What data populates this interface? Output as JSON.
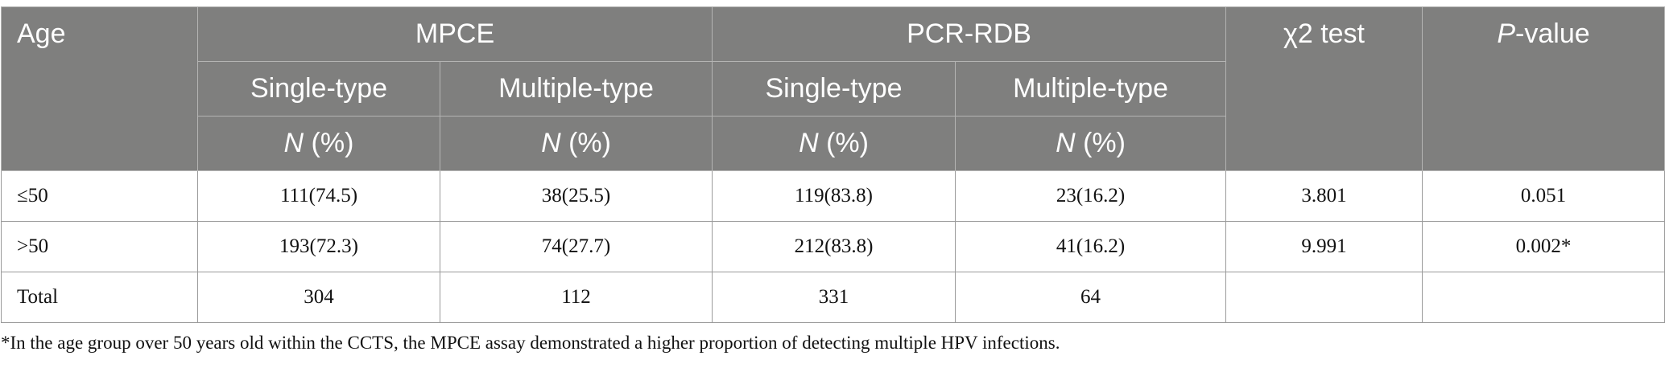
{
  "header": {
    "age": "Age",
    "group1": "MPCE",
    "group2": "PCR-RDB",
    "chi2_label": "χ2 test",
    "p_italic": "P",
    "p_rest": "-value",
    "single": "Single-type",
    "multiple": "Multiple-type",
    "n_italic": "N",
    "n_rest": " (%)"
  },
  "rows": [
    {
      "age": "≤50",
      "mpce_single": "111(74.5)",
      "mpce_multiple": "38(25.5)",
      "pcr_single": "119(83.8)",
      "pcr_multiple": "23(16.2)",
      "chi2": "3.801",
      "p": "0.051"
    },
    {
      "age": ">50",
      "mpce_single": "193(72.3)",
      "mpce_multiple": "74(27.7)",
      "pcr_single": "212(83.8)",
      "pcr_multiple": "41(16.2)",
      "chi2": "9.991",
      "p": "0.002*"
    },
    {
      "age": "Total",
      "mpce_single": "304",
      "mpce_multiple": "112",
      "pcr_single": "331",
      "pcr_multiple": "64",
      "chi2": "",
      "p": ""
    }
  ],
  "footnote": "*In the age group over 50 years old within the CCTS, the MPCE assay demonstrated a higher proportion of detecting multiple HPV infections."
}
